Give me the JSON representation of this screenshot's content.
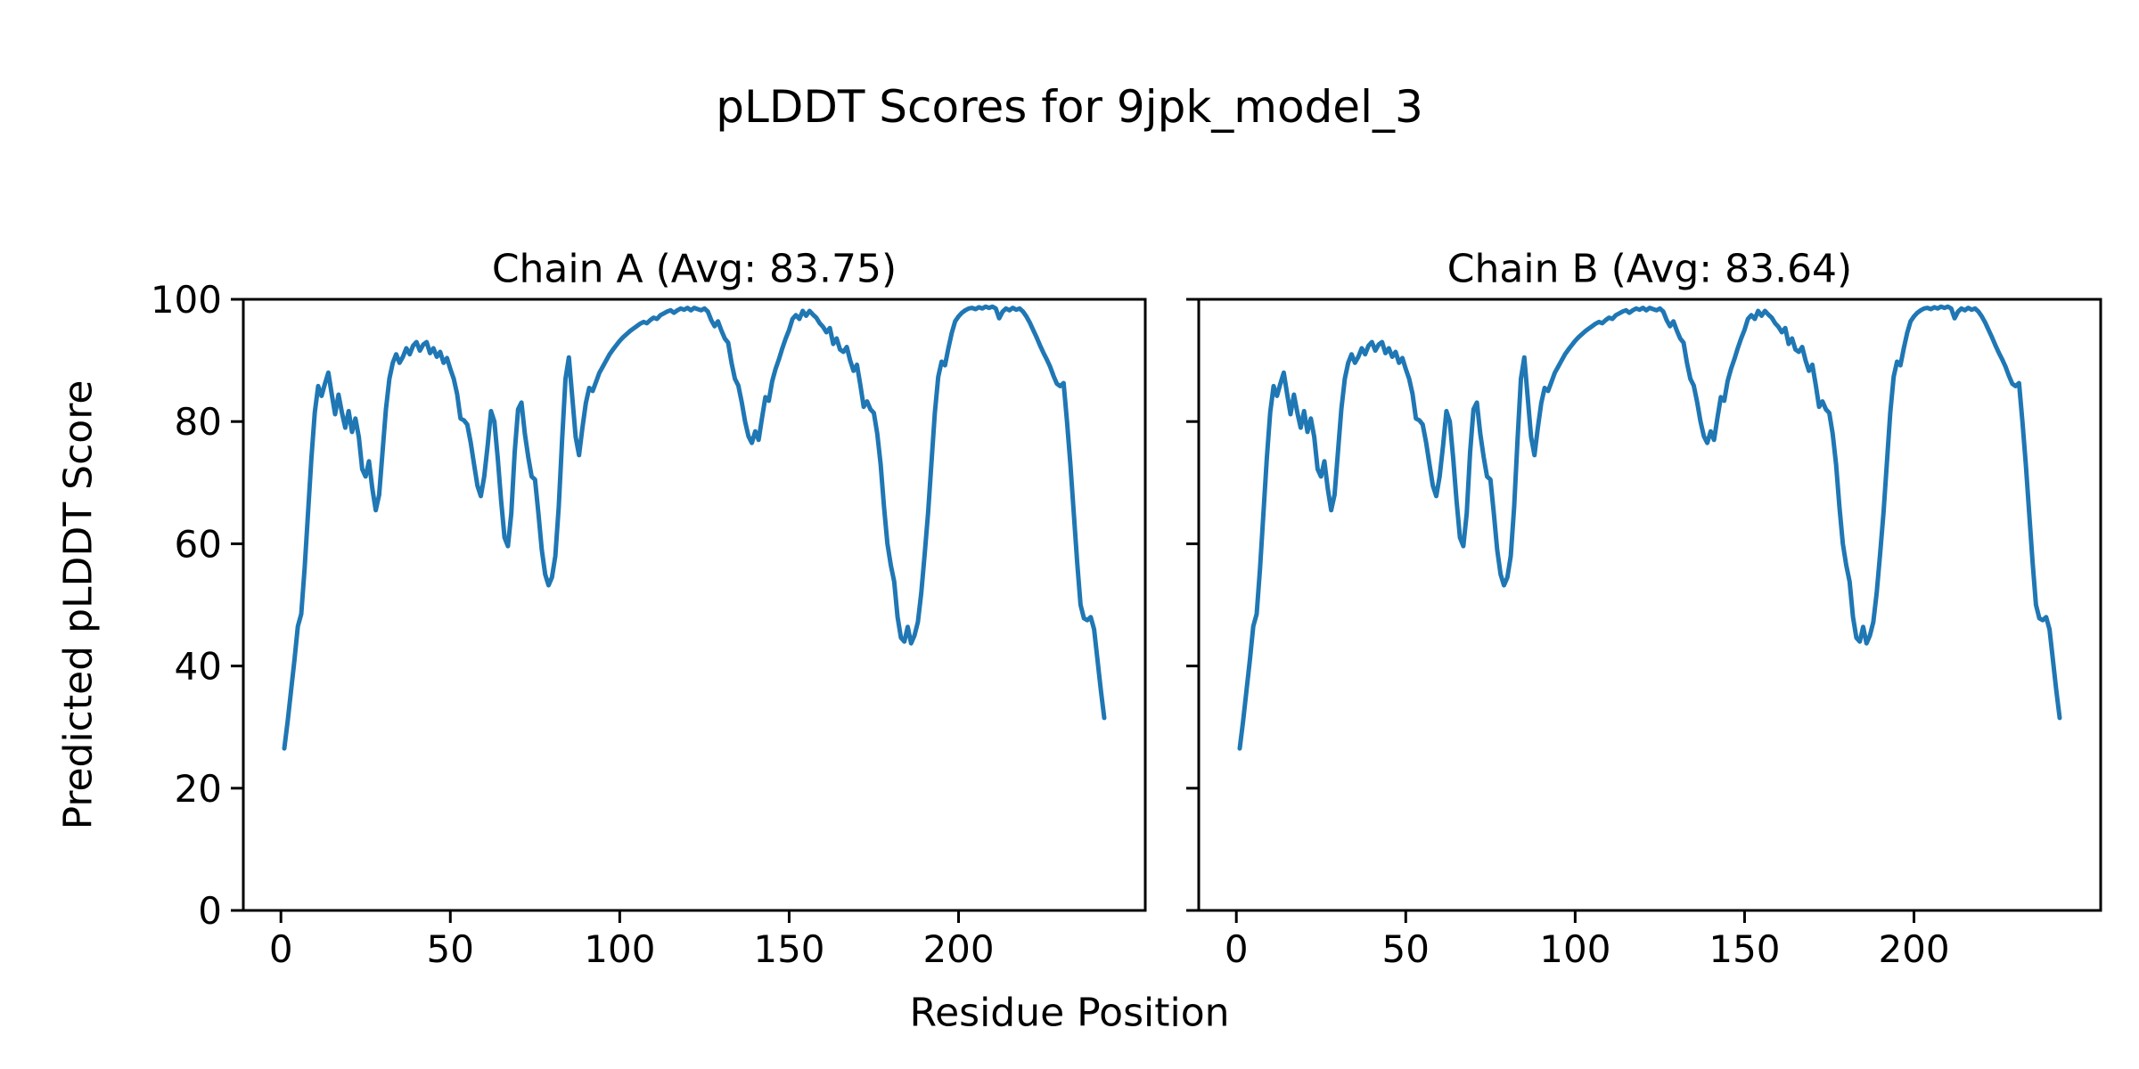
{
  "figure": {
    "suptitle": "pLDDT Scores for 9jpk_model_3",
    "xlabel": "Residue Position",
    "ylabel": "Predicted pLDDT Score",
    "background_color": "#ffffff",
    "axis_color": "#000000",
    "line_color": "#1f77b4"
  },
  "chart_data": [
    {
      "type": "line",
      "title": "Chain A (Avg: 83.75)",
      "chain": "A",
      "avg": 83.75,
      "xlim": [
        -11.1,
        255.1
      ],
      "ylim": [
        0,
        100
      ],
      "x_ticks": [
        0,
        50,
        100,
        150,
        200
      ],
      "y_ticks": [
        0,
        20,
        40,
        60,
        80,
        100
      ],
      "y_tick_labels_visible": true,
      "grid": false,
      "series": [
        {
          "name": "Chain A pLDDT",
          "color": "#1f77b4",
          "x_start": 1,
          "x_step": 1,
          "values": [
            26.5,
            31,
            36,
            41,
            46.5,
            48.5,
            56,
            65,
            74,
            81.5,
            85.8,
            84.2,
            86.2,
            88,
            84.5,
            81.2,
            84.4,
            81.5,
            79,
            81.7,
            78.3,
            80.5,
            77.5,
            72.2,
            71,
            73.5,
            69,
            65.5,
            68,
            75,
            82,
            87,
            89.6,
            91,
            89.6,
            90.6,
            92,
            91,
            92.4,
            93,
            91.6,
            92.6,
            93,
            91.2,
            92,
            90.6,
            91.4,
            89.6,
            90.4,
            88.6,
            87,
            84.5,
            80.5,
            80.2,
            79.5,
            76.6,
            73,
            69.5,
            67.8,
            71,
            76,
            81.7,
            80,
            74,
            67,
            61,
            59.6,
            65,
            75,
            82,
            83.1,
            78,
            74.2,
            71,
            70.5,
            65,
            59,
            55,
            53.2,
            54.5,
            58,
            66,
            77,
            87,
            90.5,
            84,
            77.5,
            74.5,
            79,
            83,
            85.5,
            85,
            86.5,
            88,
            89,
            90,
            91,
            91.8,
            92.5,
            93.2,
            93.8,
            94.3,
            94.8,
            95.2,
            95.6,
            96,
            96.3,
            96.1,
            96.6,
            97,
            96.8,
            97.4,
            97.7,
            98,
            98.2,
            97.8,
            98.2,
            98.5,
            98.3,
            98.6,
            98.2,
            98.6,
            98.4,
            98.2,
            98.5,
            98,
            96.6,
            95.6,
            96.4,
            94.9,
            93.6,
            92.9,
            89.6,
            87,
            85.9,
            83.2,
            80,
            77.6,
            76.5,
            78.4,
            77,
            80.6,
            84,
            83.4,
            86.6,
            88.6,
            90.2,
            92,
            93.6,
            95,
            96.8,
            97.4,
            96.8,
            98.1,
            97.3,
            98.1,
            97.5,
            97,
            96.1,
            95.5,
            94.6,
            95.3,
            92.7,
            93.6,
            91.8,
            91.4,
            92.2,
            90,
            88.3,
            89.3,
            86,
            82.4,
            83.3,
            82,
            81.4,
            78,
            73,
            66,
            60,
            56.5,
            53.8,
            48,
            44.6,
            44,
            46.4,
            43.7,
            45,
            47.2,
            52,
            58.3,
            65,
            73.2,
            81.4,
            87.3,
            89.8,
            89.2,
            92,
            94.5,
            96.4,
            97.2,
            97.8,
            98.2,
            98.5,
            98.6,
            98.4,
            98.7,
            98.5,
            98.8,
            98.6,
            98.8,
            98.5,
            96.9,
            98,
            98.5,
            98.2,
            98.6,
            98.3,
            98.5,
            98,
            97.2,
            96.2,
            95,
            93.8,
            92.5,
            91.3,
            90.2,
            89,
            87.5,
            86.2,
            85.8,
            86.3,
            80,
            73,
            65,
            57,
            50,
            47.8,
            47.5,
            48,
            46,
            41,
            36,
            31.5
          ]
        }
      ]
    },
    {
      "type": "line",
      "title": "Chain B (Avg: 83.64)",
      "chain": "B",
      "avg": 83.64,
      "xlim": [
        -11.1,
        255.1
      ],
      "ylim": [
        0,
        100
      ],
      "x_ticks": [
        0,
        50,
        100,
        150,
        200
      ],
      "y_ticks": [
        0,
        20,
        40,
        60,
        80,
        100
      ],
      "y_tick_labels_visible": false,
      "grid": false,
      "series": [
        {
          "name": "Chain B pLDDT",
          "color": "#1f77b4",
          "x_start": 1,
          "x_step": 1,
          "values": [
            26.5,
            31,
            36,
            41,
            46.5,
            48.5,
            56,
            65,
            74,
            81.5,
            85.8,
            84.2,
            86.2,
            88,
            84.5,
            81.2,
            84.4,
            81.5,
            79,
            81.7,
            78.3,
            80.5,
            77.5,
            72.2,
            71,
            73.5,
            69,
            65.5,
            68,
            75,
            82,
            87,
            89.6,
            91,
            89.6,
            90.6,
            92,
            91,
            92.4,
            93,
            91.6,
            92.6,
            93,
            91.2,
            92,
            90.6,
            91.4,
            89.6,
            90.4,
            88.6,
            87,
            84.5,
            80.5,
            80.2,
            79.5,
            76.6,
            73,
            69.5,
            67.8,
            71,
            76,
            81.7,
            80,
            74,
            67,
            61,
            59.6,
            65,
            75,
            82,
            83.1,
            78,
            74.2,
            71,
            70.5,
            65,
            59,
            55,
            53.2,
            54.5,
            58,
            66,
            77,
            87,
            90.5,
            84,
            77.5,
            74.5,
            79,
            83,
            85.5,
            85,
            86.5,
            88,
            89,
            90,
            91,
            91.8,
            92.5,
            93.2,
            93.8,
            94.3,
            94.8,
            95.2,
            95.6,
            96,
            96.3,
            96.1,
            96.6,
            97,
            96.8,
            97.4,
            97.7,
            98,
            98.2,
            97.8,
            98.2,
            98.5,
            98.3,
            98.6,
            98.2,
            98.6,
            98.4,
            98.2,
            98.5,
            98,
            96.6,
            95.6,
            96.4,
            94.9,
            93.6,
            92.9,
            89.6,
            87,
            85.9,
            83.2,
            80,
            77.6,
            76.5,
            78.4,
            77,
            80.6,
            84,
            83.4,
            86.6,
            88.6,
            90.2,
            92,
            93.6,
            95,
            96.8,
            97.4,
            96.8,
            98.1,
            97.3,
            98.1,
            97.5,
            97,
            96.1,
            95.5,
            94.6,
            95.3,
            92.7,
            93.6,
            91.8,
            91.4,
            92.2,
            90,
            88.3,
            89.3,
            86,
            82.4,
            83.3,
            82,
            81.4,
            78,
            73,
            66,
            60,
            56.5,
            53.8,
            48,
            44.6,
            44,
            46.4,
            43.7,
            45,
            47.2,
            52,
            58.3,
            65,
            73.2,
            81.4,
            87.3,
            89.8,
            89.2,
            92,
            94.5,
            96.4,
            97.2,
            97.8,
            98.2,
            98.5,
            98.6,
            98.4,
            98.7,
            98.5,
            98.8,
            98.6,
            98.8,
            98.5,
            96.9,
            98,
            98.5,
            98.2,
            98.6,
            98.3,
            98.5,
            98,
            97.2,
            96.2,
            95,
            93.8,
            92.5,
            91.3,
            90.2,
            89,
            87.5,
            86.2,
            85.8,
            86.3,
            80,
            73,
            65,
            57,
            50,
            47.8,
            47.5,
            48,
            46,
            41,
            36,
            31.5
          ]
        }
      ]
    }
  ]
}
